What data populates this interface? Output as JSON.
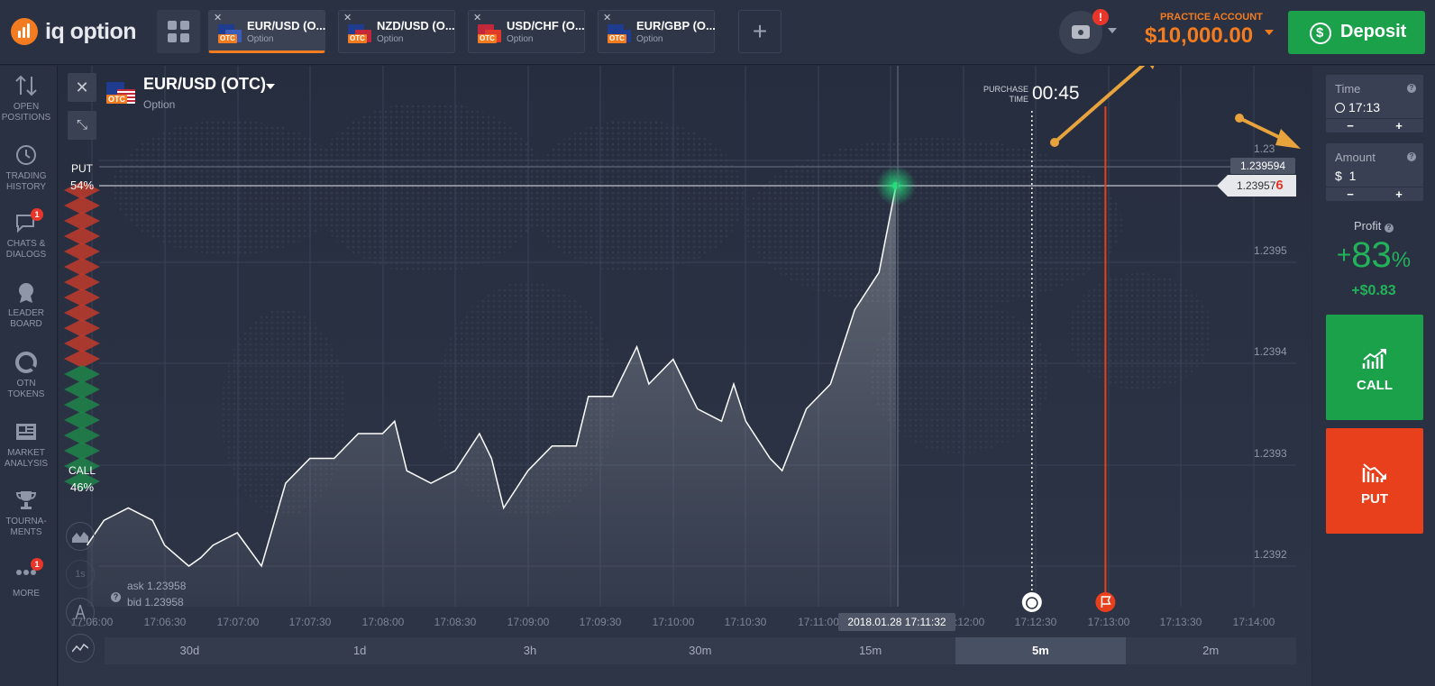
{
  "brand": {
    "logo_text_a": "iq",
    "logo_text_b": "option"
  },
  "tabs": [
    {
      "name": "EUR/USD (O...",
      "sub": "Option",
      "close": "✕",
      "c1": "#1f3c8f",
      "c2": "#3b5cb8",
      "active": true
    },
    {
      "name": "NZD/USD (O...",
      "sub": "Option",
      "close": "✕",
      "c1": "#1f3c8f",
      "c2": "#c2283a",
      "active": false
    },
    {
      "name": "USD/CHF (O...",
      "sub": "Option",
      "close": "✕",
      "c1": "#c2283a",
      "c2": "#e03a2a",
      "active": false
    },
    {
      "name": "EUR/GBP (O...",
      "sub": "Option",
      "close": "✕",
      "c1": "#1f3c8f",
      "c2": "#1f3c8f",
      "active": false
    }
  ],
  "add_tab": "+",
  "notification_badge": "!",
  "account": {
    "label": "PRACTICE ACCOUNT",
    "balance": "$10,000.00"
  },
  "deposit": {
    "label": "Deposit"
  },
  "sidebar": {
    "items": [
      {
        "label": "OPEN POSITIONS",
        "icon": "arrows-updown-icon"
      },
      {
        "label": "TRADING HISTORY",
        "icon": "history-icon"
      },
      {
        "label": "CHATS & DIALOGS",
        "icon": "chat-icon",
        "badge": "1"
      },
      {
        "label": "LEADER BOARD",
        "icon": "medal-icon"
      },
      {
        "label": "OTN TOKENS",
        "icon": "token-icon"
      },
      {
        "label": "MARKET ANALYSIS",
        "icon": "news-icon"
      },
      {
        "label": "TOURNA- MENTS",
        "icon": "trophy-icon"
      },
      {
        "label": "MORE",
        "icon": "more-icon",
        "badge": "1"
      }
    ]
  },
  "chart": {
    "asset_title": "EUR/USD (OTC)",
    "asset_sub": "Option",
    "otc_badge": "OTC",
    "close_glyph": "✕",
    "collapse_glyph": "⤡",
    "purchase_label": "PURCHASE TIME",
    "purchase_time": "00:45",
    "put_label": "PUT",
    "put_pct": "54%",
    "call_label": "CALL",
    "call_pct": "46%",
    "price_a": "1.239594",
    "price_b_main": "1.23957",
    "price_b_last": "6",
    "ask": "ask 1.23958",
    "bid": "bid 1.23958",
    "help": "?",
    "crosshair_time": "2018.01.28 17:11:32",
    "y_labels": [
      "1.23",
      "1.2395",
      "1.2394",
      "1.2393",
      "1.2392"
    ],
    "x_labels": [
      "17:06:00",
      "17:06:30",
      "17:07:00",
      "17:07:30",
      "17:08:00",
      "17:08:30",
      "17:09:00",
      "17:09:30",
      "17:10:00",
      "17:10:30",
      "17:11:00",
      "17:12:00",
      "17:12:30",
      "17:13:00",
      "17:13:30",
      "17:14:00"
    ],
    "tool_1s": "1s",
    "timeframes": [
      "30d",
      "1d",
      "3h",
      "30m",
      "15m",
      "5m",
      "2m"
    ],
    "active_timeframe": "5m",
    "colors": {
      "line": "#ffffff",
      "expiry": "#e8401c",
      "put": "#c0392b",
      "call": "#1e8449",
      "highlight": "#22e07a",
      "arrow": "#e8a33d"
    }
  },
  "chart_data": {
    "type": "line",
    "title": "EUR/USD (OTC)",
    "xlabel": "",
    "ylabel": "",
    "ylim": [
      1.23915,
      1.23962
    ],
    "series": [
      {
        "name": "EUR/USD (OTC)",
        "x": [
          "17:05:58",
          "17:06:05",
          "17:06:15",
          "17:06:25",
          "17:06:30",
          "17:06:40",
          "17:06:45",
          "17:06:50",
          "17:07:00",
          "17:07:10",
          "17:07:20",
          "17:07:25",
          "17:07:30",
          "17:07:40",
          "17:07:50",
          "17:08:00",
          "17:08:05",
          "17:08:10",
          "17:08:20",
          "17:08:30",
          "17:08:40",
          "17:08:45",
          "17:08:50",
          "17:09:00",
          "17:09:10",
          "17:09:20",
          "17:09:25",
          "17:09:35",
          "17:09:45",
          "17:09:50",
          "17:10:00",
          "17:10:05",
          "17:10:10",
          "17:10:20",
          "17:10:25",
          "17:10:30",
          "17:10:40",
          "17:10:45",
          "17:10:55",
          "17:11:05",
          "17:11:15",
          "17:11:25",
          "17:11:32"
        ],
        "y": [
          1.23928,
          1.2393,
          1.23931,
          1.2393,
          1.23928,
          1.23925,
          1.23927,
          1.23928,
          1.23929,
          1.23925,
          1.23933,
          1.23934,
          1.23935,
          1.23935,
          1.23937,
          1.23937,
          1.23938,
          1.23934,
          1.23933,
          1.23934,
          1.23937,
          1.23935,
          1.23931,
          1.23934,
          1.23936,
          1.23936,
          1.2394,
          1.2394,
          1.23944,
          1.23941,
          1.23943,
          1.23941,
          1.23939,
          1.23938,
          1.23941,
          1.23938,
          1.23935,
          1.23934,
          1.23939,
          1.23941,
          1.23947,
          1.2395,
          1.23957
        ]
      }
    ],
    "grid": true,
    "expiry_time": "17:13:00",
    "purchase_deadline": "17:12:30"
  },
  "right_panel": {
    "time_label": "Time",
    "time_value": "17:13",
    "amount_label": "Amount",
    "amount_value": "$  1",
    "minus": "−",
    "plus": "+",
    "help": "?",
    "profit_label": "Profit",
    "profit_sign": "+",
    "profit_pct": "83",
    "profit_pct_sym": "%",
    "profit_amount": "+$0.83",
    "call_label": "CALL",
    "put_label": "PUT"
  }
}
